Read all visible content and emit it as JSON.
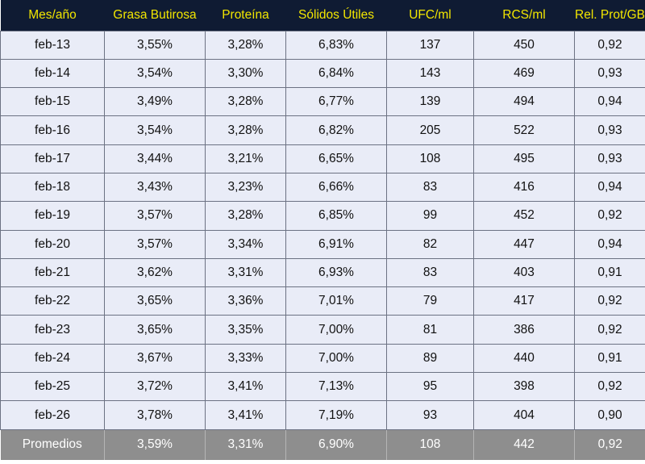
{
  "table": {
    "headers": [
      "Mes/año",
      "Grasa Butirosa",
      "Proteína",
      "Sólidos Útiles",
      "UFC/ml",
      "RCS/ml",
      "Rel. Prot/GB"
    ],
    "rows": [
      [
        "feb-13",
        "3,55%",
        "3,28%",
        "6,83%",
        "137",
        "450",
        "0,92"
      ],
      [
        "feb-14",
        "3,54%",
        "3,30%",
        "6,84%",
        "143",
        "469",
        "0,93"
      ],
      [
        "feb-15",
        "3,49%",
        "3,28%",
        "6,77%",
        "139",
        "494",
        "0,94"
      ],
      [
        "feb-16",
        "3,54%",
        "3,28%",
        "6,82%",
        "205",
        "522",
        "0,93"
      ],
      [
        "feb-17",
        "3,44%",
        "3,21%",
        "6,65%",
        "108",
        "495",
        "0,93"
      ],
      [
        "feb-18",
        "3,43%",
        "3,23%",
        "6,66%",
        "83",
        "416",
        "0,94"
      ],
      [
        "feb-19",
        "3,57%",
        "3,28%",
        "6,85%",
        "99",
        "452",
        "0,92"
      ],
      [
        "feb-20",
        "3,57%",
        "3,34%",
        "6,91%",
        "82",
        "447",
        "0,94"
      ],
      [
        "feb-21",
        "3,62%",
        "3,31%",
        "6,93%",
        "83",
        "403",
        "0,91"
      ],
      [
        "feb-22",
        "3,65%",
        "3,36%",
        "7,01%",
        "79",
        "417",
        "0,92"
      ],
      [
        "feb-23",
        "3,65%",
        "3,35%",
        "7,00%",
        "81",
        "386",
        "0,92"
      ],
      [
        "feb-24",
        "3,67%",
        "3,33%",
        "7,00%",
        "89",
        "440",
        "0,91"
      ],
      [
        "feb-25",
        "3,72%",
        "3,41%",
        "7,13%",
        "95",
        "398",
        "0,92"
      ],
      [
        "feb-26",
        "3,78%",
        "3,41%",
        "7,19%",
        "93",
        "404",
        "0,90"
      ]
    ],
    "summary": [
      "Promedios",
      "3,59%",
      "3,31%",
      "6,90%",
      "108",
      "442",
      "0,92"
    ]
  },
  "colors": {
    "header_background": "#0f1b33",
    "header_text": "#f2e600",
    "row_background": "#e9ecf7",
    "summary_background": "#8e8e8e",
    "summary_text": "#ffffff"
  }
}
